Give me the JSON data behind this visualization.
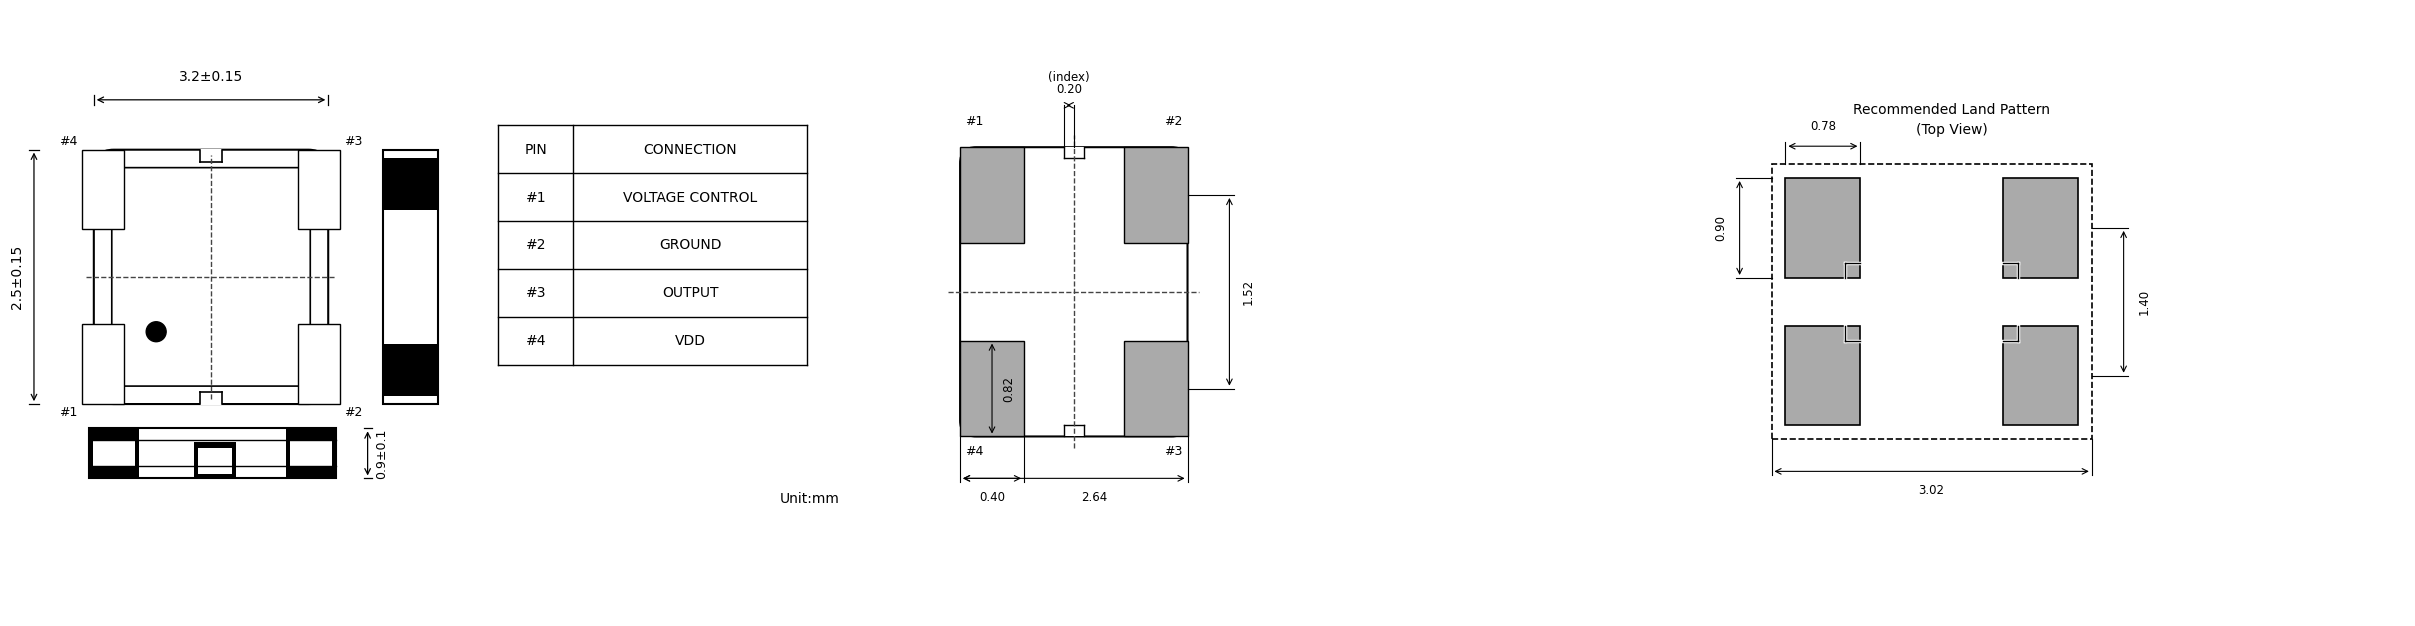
{
  "bg_color": "#ffffff",
  "line_color": "#000000",
  "gray_color": "#aaaaaa",
  "dashed_color": "#555555",
  "table": {
    "headers": [
      "PIN",
      "CONNECTION"
    ],
    "rows": [
      [
        "#1",
        "VOLTAGE CONTROL"
      ],
      [
        "#2",
        "GROUND"
      ],
      [
        "#3",
        "OUTPUT"
      ],
      [
        "#4",
        "VDD"
      ]
    ]
  },
  "dim_labels": {
    "top_width": "3.2±0.15",
    "left_height": "2.5±0.15",
    "bottom_height": "0.9±0.1",
    "pcb_index_top": "0.20",
    "pcb_index_bot": "(index)",
    "pcb_pad_height": "0.82",
    "pcb_total_height": "1.52",
    "pcb_pad_width": "0.40",
    "pcb_total_width": "2.64",
    "land_width": "0.78",
    "land_pad_height": "0.90",
    "land_total_height": "1.40",
    "land_total_width": "3.02",
    "unit": "Unit:mm",
    "land_title1": "Recommended Land Pattern",
    "land_title2": "(Top View)"
  }
}
